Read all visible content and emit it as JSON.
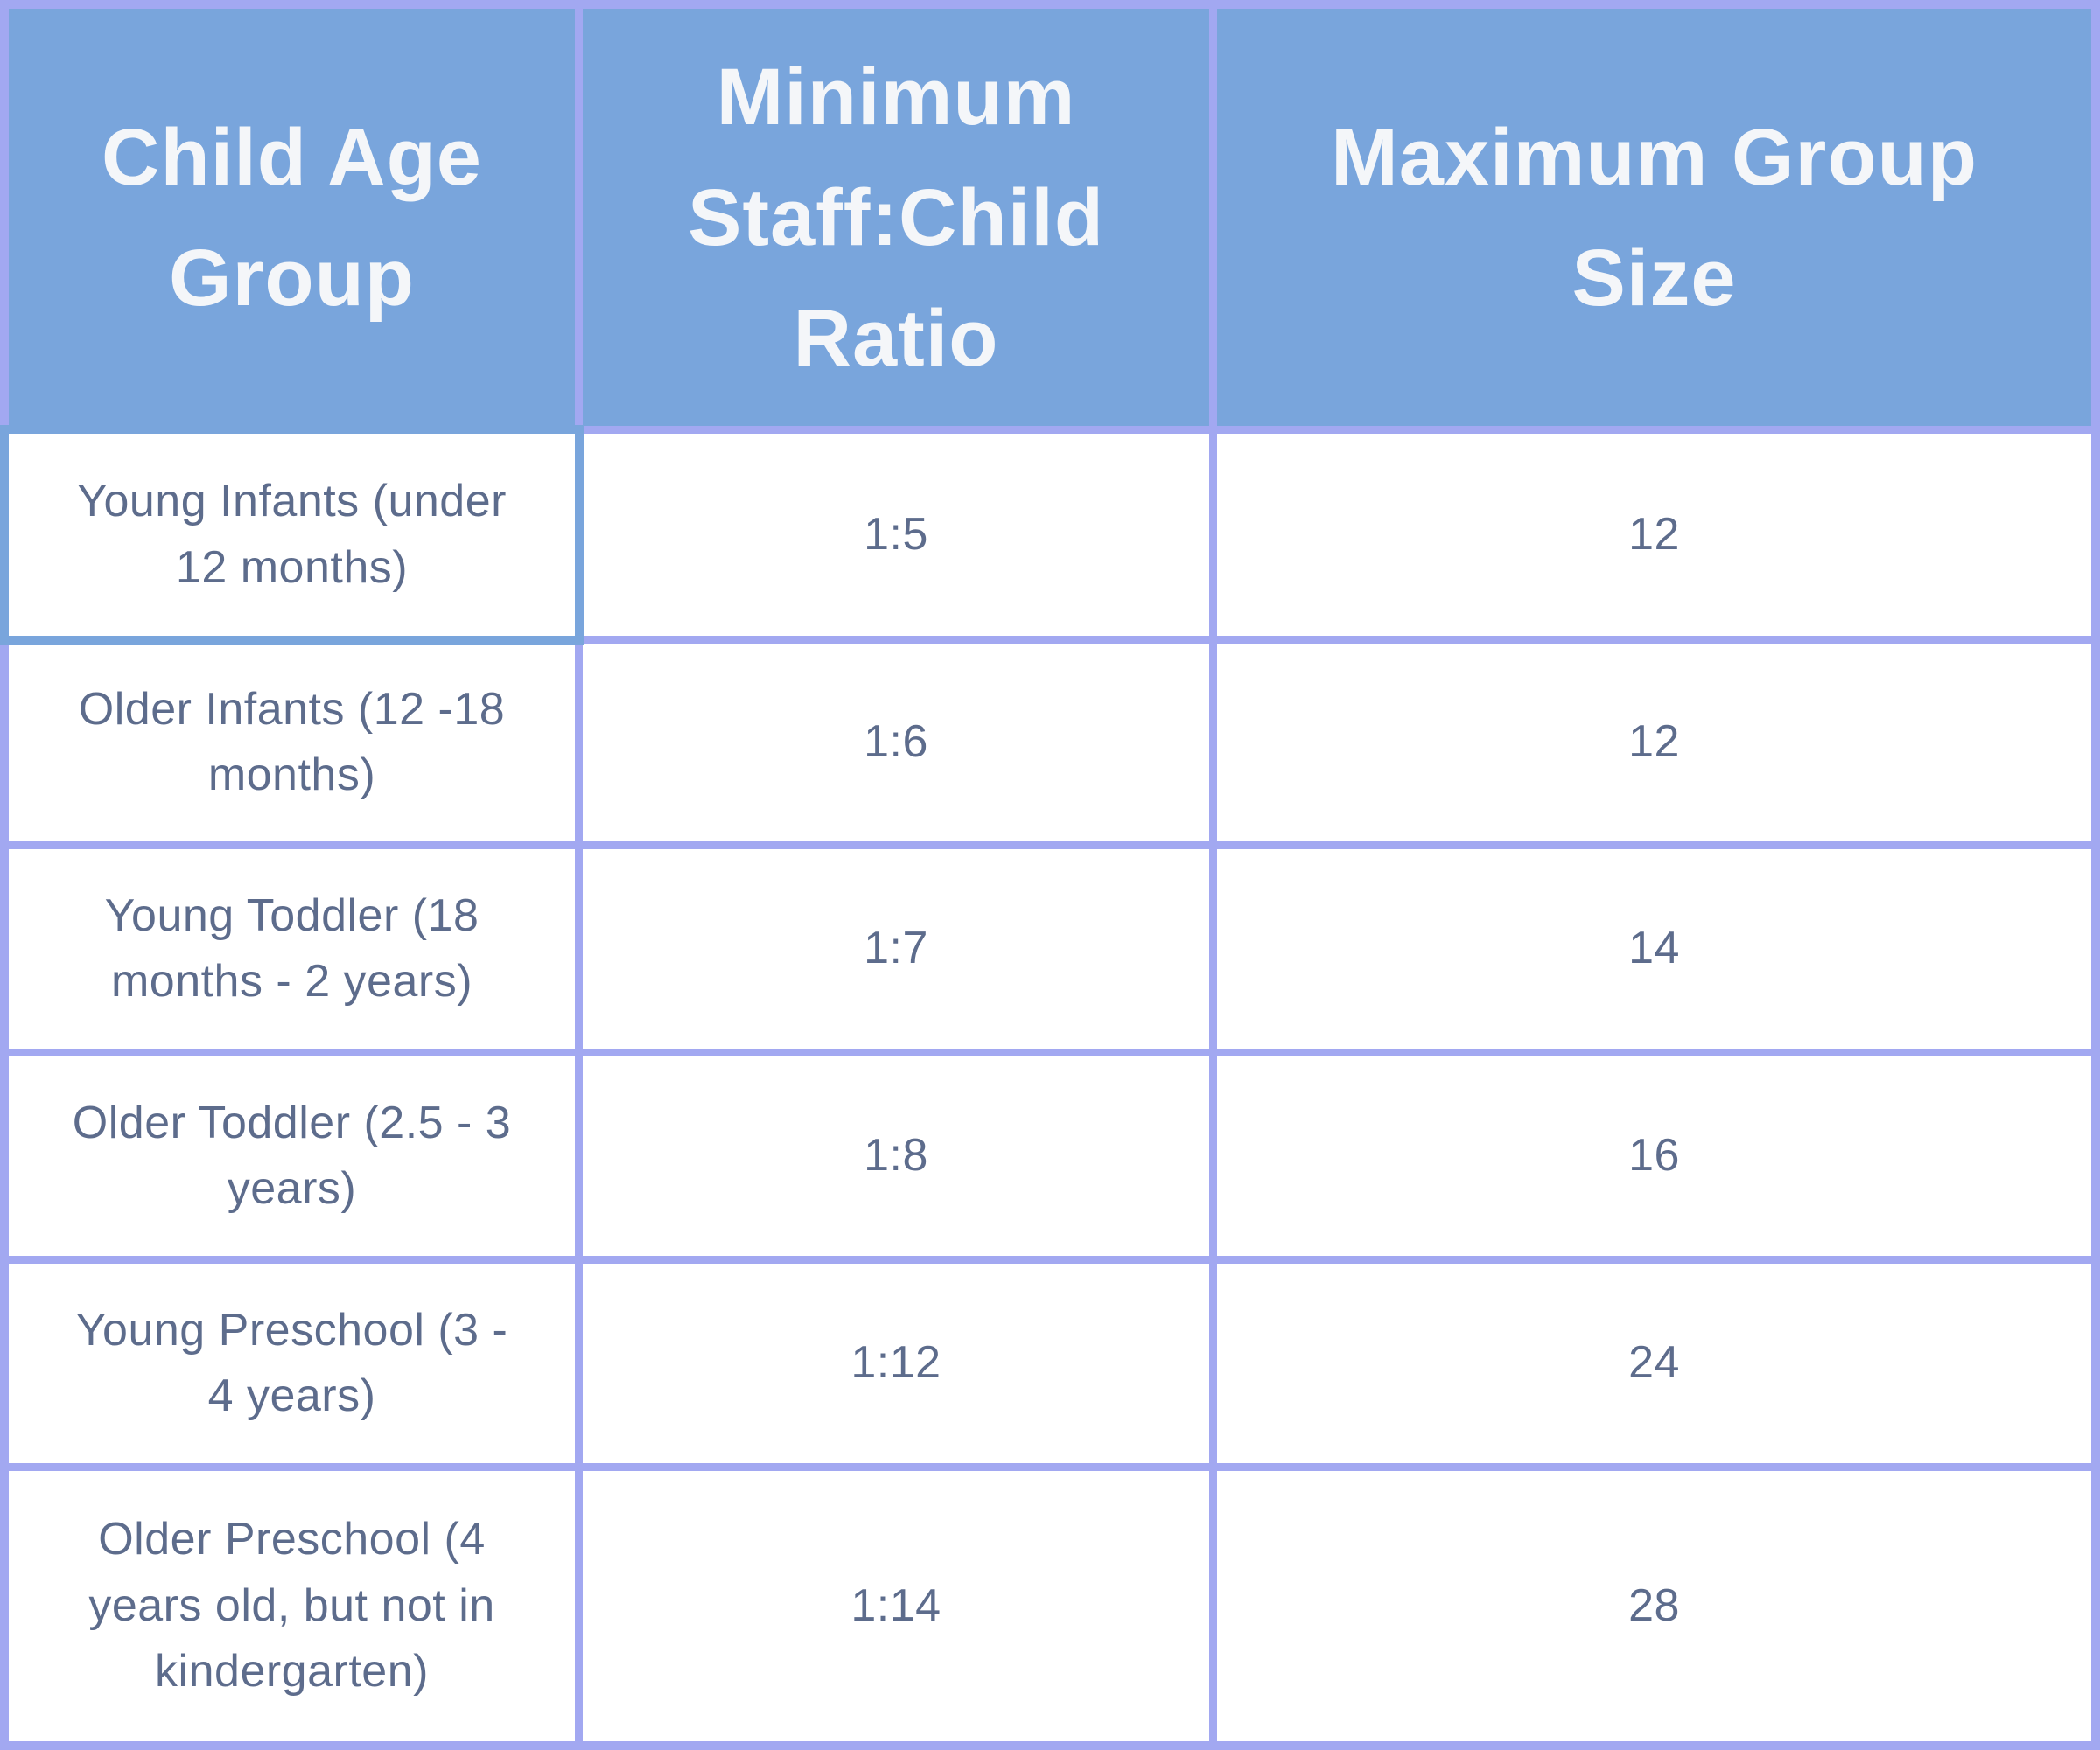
{
  "chart_data": {
    "type": "table",
    "columns": [
      {
        "label": "Child Age\nGroup"
      },
      {
        "label": "Minimum\nStaff:Child\nRatio"
      },
      {
        "label": "Maximum Group\nSize"
      }
    ],
    "rows": [
      {
        "age_group": "Young Infants (under\n12 months)",
        "ratio": "1:5",
        "max_group_size": "12"
      },
      {
        "age_group": "Older Infants (12 -18\nmonths)",
        "ratio": "1:6",
        "max_group_size": "12"
      },
      {
        "age_group": "Young Toddler (18\nmonths - 2 years)",
        "ratio": "1:7",
        "max_group_size": "14"
      },
      {
        "age_group": "Older Toddler (2.5 - 3\nyears)",
        "ratio": "1:8",
        "max_group_size": "16"
      },
      {
        "age_group": "Young Preschool (3 -\n4 years)",
        "ratio": "1:12",
        "max_group_size": "24"
      },
      {
        "age_group": "Older Preschool (4\nyears old, but not in\nkindergarten)",
        "ratio": "1:14",
        "max_group_size": "28"
      }
    ]
  },
  "colors": {
    "header_bg": "#79a5dc",
    "header_text": "#f4f6f9",
    "grid": "#a2a8f1",
    "cell_bg": "#ffffff",
    "body_text": "#5d6c8c",
    "highlight_border": "#79a5dc"
  }
}
